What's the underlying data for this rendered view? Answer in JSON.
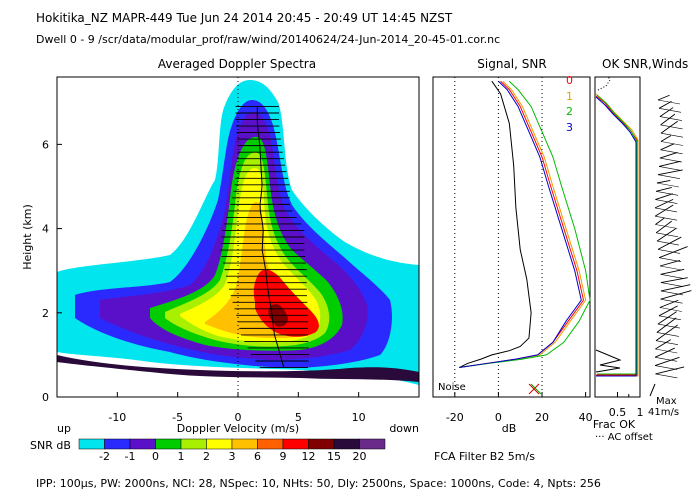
{
  "header": {
    "line1": "Hokitika_NZ   MAPR-449   Tue Jun 24 2014 20:45  -  20:49 UT 14:45 NZST",
    "line2": "Dwell   0  -   9    /scr/data/modular_prof/raw/wind/20140624/24-Jun-2014_20-45-01.cor.nc"
  },
  "footer": {
    "params": "IPP: 100µs,  PW: 2000ns,  NCI:  28,  NSpec: 10,  NHts: 50,  Dly: 2500ns,  Space: 1000ns,  Code: 4,  Npts: 256",
    "filter": "FCA Filter B2   5m/s"
  },
  "colors": {
    "cyan": "#00e5ee",
    "blue": "#2a2aff",
    "indigo": "#5a10c8",
    "green": "#00cc00",
    "lime": "#a8f000",
    "yellow": "#ffff00",
    "orange": "#ffc000",
    "red": "#ff0000",
    "maroon": "#800000",
    "purple": "#6a2a8a",
    "dark": "#2a0a3a"
  },
  "chart_data": [
    {
      "type": "heatmap",
      "title": "Averaged Doppler Spectra",
      "xlabel": "Doppler Velocity (m/s)",
      "ylabel": "Height (km)",
      "xlim": [
        -15,
        15
      ],
      "ylim": [
        0,
        7.6
      ],
      "xticks": [
        -10,
        -5,
        0,
        5,
        10
      ],
      "yticks": [
        0,
        2,
        4,
        6
      ],
      "up_label": "up",
      "down_label": "down",
      "mean_velocity_profile": {
        "heights": [
          0.7,
          1.0,
          1.5,
          2.0,
          2.5,
          3.0,
          3.5,
          4.0,
          4.5,
          5.0,
          5.5,
          6.0,
          6.5,
          6.9
        ],
        "velocity": [
          3.8,
          3.5,
          3.0,
          2.8,
          2.5,
          2.3,
          2.0,
          2.1,
          1.8,
          2.0,
          1.9,
          1.8,
          1.6,
          1.6
        ],
        "error_halfwidth": [
          2.0,
          2.4,
          2.8,
          3.0,
          3.2,
          3.4,
          3.5,
          3.4,
          2.5,
          2.3,
          2.0,
          1.8,
          1.8,
          1.8
        ]
      },
      "colorbar": {
        "label": "SNR dB",
        "ticks": [
          "-2",
          "-1",
          "0",
          "1",
          "2",
          "3",
          "6",
          "9",
          "12",
          "15",
          "20"
        ]
      }
    },
    {
      "type": "line",
      "title": "Signal, SNR",
      "xlabel": "dB",
      "xlim": [
        -30,
        42
      ],
      "ylim": [
        0,
        7.6
      ],
      "xticks": [
        -20,
        0,
        20,
        40
      ],
      "noise_label": "Noise",
      "legend": [
        "0",
        "1",
        "2",
        "3"
      ],
      "series": [
        {
          "name": "noise",
          "x": [
            -18,
            -14,
            -8,
            -3,
            5,
            10,
            14,
            15,
            13,
            10,
            8,
            7,
            5,
            1,
            -3
          ],
          "y": [
            0.7,
            0.8,
            0.9,
            1.0,
            1.1,
            1.2,
            1.4,
            2.0,
            2.8,
            3.5,
            4.5,
            5.5,
            6.5,
            7.2,
            7.5
          ]
        },
        {
          "name": "0",
          "x": [
            -18,
            -5,
            8,
            18,
            25,
            32,
            39,
            36,
            30,
            24,
            20,
            15,
            10,
            5,
            1
          ],
          "y": [
            0.7,
            0.8,
            0.9,
            1.0,
            1.3,
            1.8,
            2.3,
            3.0,
            4.0,
            5.0,
            5.7,
            6.3,
            6.9,
            7.3,
            7.5
          ]
        },
        {
          "name": "1",
          "x": [
            -18,
            -5,
            9,
            19,
            26,
            33,
            40,
            37,
            31,
            25,
            21,
            16,
            11,
            6,
            2
          ],
          "y": [
            0.7,
            0.8,
            0.9,
            1.0,
            1.3,
            1.8,
            2.3,
            3.0,
            4.0,
            5.0,
            5.7,
            6.3,
            6.9,
            7.3,
            7.5
          ]
        },
        {
          "name": "2",
          "x": [
            -18,
            -4,
            11,
            22,
            30,
            37,
            42,
            40,
            35,
            29,
            25,
            20,
            15,
            9,
            5
          ],
          "y": [
            0.7,
            0.8,
            0.9,
            1.0,
            1.3,
            1.8,
            2.3,
            3.0,
            4.0,
            5.0,
            5.7,
            6.3,
            6.9,
            7.3,
            7.5
          ]
        },
        {
          "name": "3",
          "x": [
            -18,
            -5,
            8,
            18,
            25,
            31,
            38,
            35,
            29,
            23,
            19,
            14,
            9,
            4,
            0
          ],
          "y": [
            0.7,
            0.8,
            0.9,
            1.0,
            1.3,
            1.8,
            2.3,
            3.0,
            4.0,
            5.0,
            5.7,
            6.3,
            6.9,
            7.3,
            7.5
          ]
        }
      ]
    },
    {
      "type": "line",
      "title": "OK SNR,Winds",
      "xlabel": "Frac OK",
      "sublabel": "AC offset",
      "xlim": [
        0,
        1
      ],
      "xticks": [
        "0.5",
        "1"
      ],
      "wind_scale_label": "Max",
      "wind_scale_value": "41m/s"
    }
  ]
}
